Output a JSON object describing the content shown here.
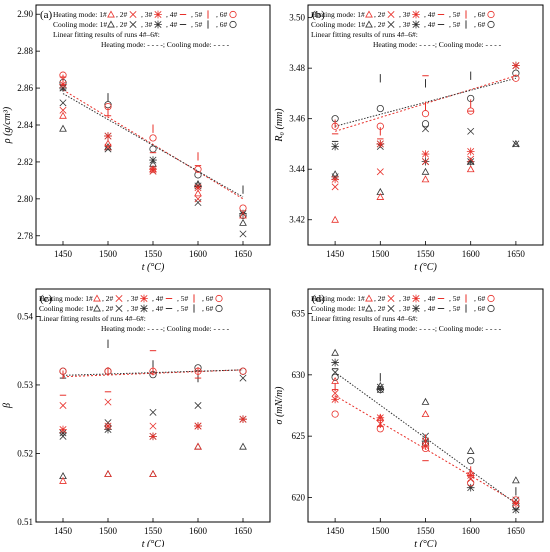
{
  "figure": {
    "colors": {
      "heating": "#e8302a",
      "cooling": "#333333",
      "axis": "#000000"
    },
    "legend": {
      "heating_prefix": "Heating mode: 1#",
      "cooling_prefix": "Cooling mode: 1#",
      "run_labels": [
        ", 2#",
        ", 3#",
        ", 4#",
        ", 5#",
        ", 6#"
      ],
      "fit_line_a": "Linear fitting results of runs 4#–6#:",
      "fit_heating_a": "Heating mode: - - - -; Cooling mode: - - - -",
      "fit_line_d": "Linear fitting results of runs 4#–6#:",
      "fit_heating_d": "Heating mode: - - - -; Cooling mode: - - - -"
    }
  },
  "chart_data": [
    {
      "panel": "(a)",
      "type": "scatter",
      "xlabel": "t (°C)",
      "ylabel": "ρ (g/cm³)",
      "xlim": [
        1420,
        1680
      ],
      "ylim": [
        2.775,
        2.905
      ],
      "xticks": [
        1450,
        1500,
        1550,
        1600,
        1650
      ],
      "yticks": [
        2.78,
        2.8,
        2.82,
        2.84,
        2.86,
        2.88,
        2.9
      ],
      "ytick_labels": [
        "2.78",
        "2.80",
        "2.82",
        "2.84",
        "2.86",
        "2.88",
        "2.90"
      ],
      "heating": [
        [
          1450,
          2.845,
          "tri"
        ],
        [
          1450,
          2.848,
          "x"
        ],
        [
          1450,
          2.862,
          "star"
        ],
        [
          1450,
          2.866,
          "dash"
        ],
        [
          1450,
          2.865,
          "bar"
        ],
        [
          1450,
          2.867,
          "circle"
        ],
        [
          1500,
          2.83,
          "tri"
        ],
        [
          1500,
          2.828,
          "x"
        ],
        [
          1500,
          2.834,
          "star"
        ],
        [
          1500,
          2.845,
          "dash"
        ],
        [
          1500,
          2.847,
          "bar"
        ],
        [
          1500,
          2.85,
          "circle"
        ],
        [
          1550,
          2.816,
          "tri"
        ],
        [
          1550,
          2.815,
          "x"
        ],
        [
          1550,
          2.816,
          "star"
        ],
        [
          1550,
          2.825,
          "dash"
        ],
        [
          1550,
          2.838,
          "bar"
        ],
        [
          1550,
          2.833,
          "circle"
        ],
        [
          1600,
          2.803,
          "tri"
        ],
        [
          1600,
          2.8,
          "x"
        ],
        [
          1600,
          2.806,
          "star"
        ],
        [
          1600,
          2.818,
          "dash"
        ],
        [
          1600,
          2.823,
          "bar"
        ],
        [
          1600,
          2.816,
          "circle"
        ],
        [
          1650,
          2.791,
          "tri"
        ],
        [
          1650,
          2.795,
          "circle"
        ]
      ],
      "cooling": [
        [
          1450,
          2.838,
          "tri"
        ],
        [
          1450,
          2.852,
          "x"
        ],
        [
          1450,
          2.86,
          "star"
        ],
        [
          1450,
          2.859,
          "dash"
        ],
        [
          1450,
          2.863,
          "circle"
        ],
        [
          1500,
          2.828,
          "tri"
        ],
        [
          1500,
          2.827,
          "x"
        ],
        [
          1500,
          2.834,
          "star"
        ],
        [
          1500,
          2.855,
          "bar"
        ],
        [
          1500,
          2.851,
          "circle"
        ],
        [
          1550,
          2.819,
          "tri"
        ],
        [
          1550,
          2.815,
          "x"
        ],
        [
          1550,
          2.821,
          "star"
        ],
        [
          1550,
          2.827,
          "circle"
        ],
        [
          1600,
          2.808,
          "tri"
        ],
        [
          1600,
          2.798,
          "x"
        ],
        [
          1600,
          2.807,
          "star"
        ],
        [
          1600,
          2.813,
          "circle"
        ],
        [
          1650,
          2.787,
          "tri"
        ],
        [
          1650,
          2.781,
          "x"
        ],
        [
          1650,
          2.792,
          "star"
        ],
        [
          1650,
          2.805,
          "bar"
        ],
        [
          1650,
          2.791,
          "circle"
        ]
      ],
      "fit_heating": [
        [
          1450,
          2.859
        ],
        [
          1650,
          2.8
        ]
      ],
      "fit_cooling": [
        [
          1450,
          2.857
        ],
        [
          1650,
          2.801
        ]
      ]
    },
    {
      "panel": "(b)",
      "type": "scatter",
      "xlabel": "t (°C)",
      "ylabel": "R₀ (mm)",
      "xlim": [
        1420,
        1680
      ],
      "ylim": [
        3.41,
        3.505
      ],
      "xticks": [
        1450,
        1500,
        1550,
        1600,
        1650
      ],
      "yticks": [
        3.42,
        3.44,
        3.46,
        3.48,
        3.5
      ],
      "ytick_labels": [
        "3.42",
        "3.44",
        "3.46",
        "3.48",
        "3.50"
      ],
      "heating": [
        [
          1450,
          3.42,
          "tri"
        ],
        [
          1450,
          3.433,
          "x"
        ],
        [
          1450,
          3.436,
          "star"
        ],
        [
          1450,
          3.454,
          "dash"
        ],
        [
          1450,
          3.458,
          "bar"
        ],
        [
          1450,
          3.457,
          "circle"
        ],
        [
          1500,
          3.429,
          "tri"
        ],
        [
          1500,
          3.439,
          "x"
        ],
        [
          1500,
          3.45,
          "star"
        ],
        [
          1500,
          3.452,
          "dash"
        ],
        [
          1500,
          3.455,
          "bar"
        ],
        [
          1500,
          3.457,
          "circle"
        ],
        [
          1550,
          3.436,
          "tri"
        ],
        [
          1550,
          3.443,
          "x"
        ],
        [
          1550,
          3.446,
          "star"
        ],
        [
          1550,
          3.477,
          "dash"
        ],
        [
          1550,
          3.465,
          "bar"
        ],
        [
          1550,
          3.462,
          "circle"
        ],
        [
          1600,
          3.44,
          "tri"
        ],
        [
          1600,
          3.444,
          "x"
        ],
        [
          1600,
          3.447,
          "star"
        ],
        [
          1600,
          3.463,
          "dash"
        ],
        [
          1600,
          3.466,
          "bar"
        ],
        [
          1600,
          3.463,
          "circle"
        ],
        [
          1650,
          3.481,
          "star"
        ],
        [
          1650,
          3.476,
          "circle"
        ]
      ],
      "cooling": [
        [
          1450,
          3.438,
          "tri"
        ],
        [
          1450,
          3.437,
          "x"
        ],
        [
          1450,
          3.449,
          "star"
        ],
        [
          1450,
          3.451,
          "dash"
        ],
        [
          1450,
          3.46,
          "circle"
        ],
        [
          1500,
          3.431,
          "tri"
        ],
        [
          1500,
          3.449,
          "x"
        ],
        [
          1500,
          3.45,
          "star"
        ],
        [
          1500,
          3.476,
          "bar"
        ],
        [
          1500,
          3.464,
          "circle"
        ],
        [
          1550,
          3.439,
          "tri"
        ],
        [
          1550,
          3.456,
          "x"
        ],
        [
          1550,
          3.443,
          "star"
        ],
        [
          1550,
          3.474,
          "bar"
        ],
        [
          1550,
          3.458,
          "circle"
        ],
        [
          1600,
          3.443,
          "tri"
        ],
        [
          1600,
          3.455,
          "x"
        ],
        [
          1600,
          3.443,
          "star"
        ],
        [
          1600,
          3.477,
          "bar"
        ],
        [
          1600,
          3.468,
          "circle"
        ],
        [
          1650,
          3.45,
          "tri"
        ],
        [
          1650,
          3.45,
          "x"
        ],
        [
          1650,
          3.481,
          "star"
        ],
        [
          1650,
          3.478,
          "circle"
        ]
      ],
      "fit_heating": [
        [
          1450,
          3.455
        ],
        [
          1650,
          3.477
        ]
      ],
      "fit_cooling": [
        [
          1450,
          3.457
        ],
        [
          1650,
          3.476
        ]
      ]
    },
    {
      "panel": "(c)",
      "type": "scatter",
      "xlabel": "t (°C)",
      "ylabel": "β",
      "xlim": [
        1420,
        1680
      ],
      "ylim": [
        0.51,
        0.544
      ],
      "xticks": [
        1450,
        1500,
        1550,
        1600,
        1650
      ],
      "yticks": [
        0.51,
        0.52,
        0.53,
        0.54
      ],
      "ytick_labels": [
        "0.51",
        "0.52",
        "0.53",
        "0.54"
      ],
      "heating": [
        [
          1450,
          0.516,
          "tri"
        ],
        [
          1450,
          0.527,
          "x"
        ],
        [
          1450,
          0.5235,
          "star"
        ],
        [
          1450,
          0.5285,
          "dash"
        ],
        [
          1450,
          0.5315,
          "bar"
        ],
        [
          1450,
          0.532,
          "circle"
        ],
        [
          1500,
          0.517,
          "tri"
        ],
        [
          1500,
          0.5275,
          "x"
        ],
        [
          1500,
          0.524,
          "star"
        ],
        [
          1500,
          0.529,
          "dash"
        ],
        [
          1500,
          0.532,
          "bar"
        ],
        [
          1500,
          0.532,
          "circle"
        ],
        [
          1550,
          0.517,
          "tri"
        ],
        [
          1550,
          0.524,
          "x"
        ],
        [
          1550,
          0.5225,
          "star"
        ],
        [
          1550,
          0.535,
          "dash"
        ],
        [
          1550,
          0.532,
          "bar"
        ],
        [
          1550,
          0.532,
          "circle"
        ],
        [
          1600,
          0.521,
          "tri"
        ],
        [
          1600,
          0.524,
          "x"
        ],
        [
          1600,
          0.524,
          "star"
        ],
        [
          1600,
          0.531,
          "dash"
        ],
        [
          1600,
          0.532,
          "bar"
        ],
        [
          1600,
          0.532,
          "circle"
        ],
        [
          1650,
          0.525,
          "star"
        ],
        [
          1650,
          0.532,
          "circle"
        ]
      ],
      "cooling": [
        [
          1450,
          0.5167,
          "tri"
        ],
        [
          1450,
          0.5225,
          "x"
        ],
        [
          1450,
          0.523,
          "star"
        ],
        [
          1450,
          0.531,
          "dash"
        ],
        [
          1450,
          0.532,
          "circle"
        ],
        [
          1500,
          0.517,
          "tri"
        ],
        [
          1500,
          0.5245,
          "x"
        ],
        [
          1500,
          0.5235,
          "star"
        ],
        [
          1500,
          0.536,
          "bar"
        ],
        [
          1500,
          0.532,
          "circle"
        ],
        [
          1550,
          0.517,
          "tri"
        ],
        [
          1550,
          0.526,
          "x"
        ],
        [
          1550,
          0.5225,
          "star"
        ],
        [
          1550,
          0.533,
          "bar"
        ],
        [
          1550,
          0.5315,
          "circle"
        ],
        [
          1600,
          0.521,
          "tri"
        ],
        [
          1600,
          0.527,
          "x"
        ],
        [
          1600,
          0.524,
          "star"
        ],
        [
          1600,
          0.531,
          "bar"
        ],
        [
          1600,
          0.5325,
          "circle"
        ],
        [
          1650,
          0.521,
          "tri"
        ],
        [
          1650,
          0.531,
          "x"
        ],
        [
          1650,
          0.525,
          "star"
        ],
        [
          1650,
          0.532,
          "circle"
        ]
      ],
      "fit_heating": [
        [
          1450,
          0.5312
        ],
        [
          1650,
          0.5322
        ]
      ],
      "fit_cooling": [
        [
          1450,
          0.5314
        ],
        [
          1650,
          0.5322
        ]
      ]
    },
    {
      "panel": "(d)",
      "type": "scatter",
      "xlabel": "t (°C)",
      "ylabel": "σ (mN/m)",
      "xlim": [
        1420,
        1680
      ],
      "ylim": [
        618.0,
        637.0
      ],
      "xticks": [
        1450,
        1500,
        1550,
        1600,
        1650
      ],
      "yticks": [
        620,
        625,
        630,
        635
      ],
      "ytick_labels": [
        "620",
        "625",
        "630",
        "635"
      ],
      "heating": [
        [
          1450,
          629.5,
          "tri"
        ],
        [
          1450,
          628.5,
          "x"
        ],
        [
          1450,
          628.0,
          "star"
        ],
        [
          1450,
          628.8,
          "dash"
        ],
        [
          1450,
          629.0,
          "bar"
        ],
        [
          1450,
          626.8,
          "circle"
        ],
        [
          1500,
          626.5,
          "tri"
        ],
        [
          1500,
          626.0,
          "x"
        ],
        [
          1500,
          626.5,
          "star"
        ],
        [
          1500,
          625.8,
          "dash"
        ],
        [
          1500,
          626.0,
          "bar"
        ],
        [
          1500,
          625.6,
          "circle"
        ],
        [
          1550,
          626.8,
          "tri"
        ],
        [
          1550,
          624.6,
          "x"
        ],
        [
          1550,
          624.2,
          "star"
        ],
        [
          1550,
          623.0,
          "dash"
        ],
        [
          1550,
          624.8,
          "bar"
        ],
        [
          1550,
          624.0,
          "circle"
        ],
        [
          1600,
          622.0,
          "tri"
        ],
        [
          1600,
          621.5,
          "x"
        ],
        [
          1600,
          621.8,
          "star"
        ],
        [
          1600,
          621.8,
          "dash"
        ],
        [
          1600,
          622.2,
          "bar"
        ],
        [
          1600,
          621.2,
          "circle"
        ],
        [
          1650,
          619.5,
          "star"
        ],
        [
          1650,
          619.8,
          "circle"
        ]
      ],
      "cooling": [
        [
          1450,
          631.8,
          "tri"
        ],
        [
          1450,
          630.2,
          "x"
        ],
        [
          1450,
          631.0,
          "star"
        ],
        [
          1450,
          630.5,
          "dash"
        ],
        [
          1450,
          629.8,
          "circle"
        ],
        [
          1500,
          629.1,
          "tri"
        ],
        [
          1500,
          629.0,
          "x"
        ],
        [
          1500,
          628.8,
          "star"
        ],
        [
          1500,
          629.8,
          "bar"
        ],
        [
          1500,
          628.8,
          "circle"
        ],
        [
          1550,
          627.8,
          "tri"
        ],
        [
          1550,
          625.0,
          "x"
        ],
        [
          1550,
          624.6,
          "star"
        ],
        [
          1550,
          624.4,
          "circle"
        ],
        [
          1600,
          623.8,
          "tri"
        ],
        [
          1600,
          621.5,
          "x"
        ],
        [
          1600,
          620.8,
          "star"
        ],
        [
          1600,
          623.0,
          "circle"
        ],
        [
          1650,
          621.4,
          "tri"
        ],
        [
          1650,
          619.8,
          "x"
        ],
        [
          1650,
          619.0,
          "star"
        ],
        [
          1650,
          620.5,
          "bar"
        ],
        [
          1650,
          619.3,
          "circle"
        ]
      ],
      "fit_heating": [
        [
          1450,
          628.3
        ],
        [
          1650,
          619.6
        ]
      ],
      "fit_cooling": [
        [
          1450,
          630.2
        ],
        [
          1650,
          619.5
        ]
      ]
    }
  ]
}
